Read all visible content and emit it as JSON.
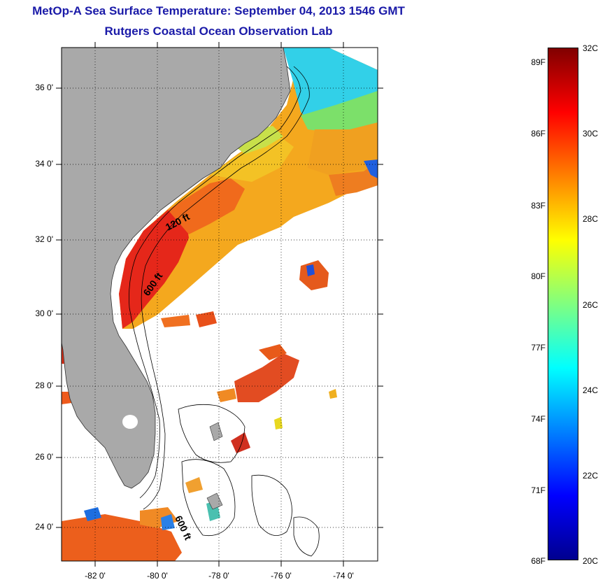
{
  "header": {
    "title": "MetOp-A Sea Surface Temperature:  September 04, 2013 1546 GMT",
    "subtitle": "Rutgers Coastal Ocean Observation Lab"
  },
  "map": {
    "lat_labels": [
      "36 0'",
      "34 0'",
      "32 0'",
      "30 0'",
      "28 0'",
      "26 0'",
      "24 0'"
    ],
    "lon_labels": [
      "-82 0'",
      "-80 0'",
      "-78 0'",
      "-76 0'",
      "-74 0'"
    ],
    "contour_labels": [
      "120 ft",
      "600 ft",
      "600 ft"
    ]
  },
  "colorbar": {
    "f_labels": [
      "89F",
      "86F",
      "83F",
      "80F",
      "77F",
      "74F",
      "71F",
      "68F"
    ],
    "c_labels": [
      "32C",
      "30C",
      "28C",
      "26C",
      "24C",
      "22C",
      "20C"
    ],
    "colors": [
      "#00008f",
      "#0000ff",
      "#0080ff",
      "#00ffff",
      "#80ff80",
      "#ffff00",
      "#ff8000",
      "#ff0000",
      "#800000"
    ]
  }
}
